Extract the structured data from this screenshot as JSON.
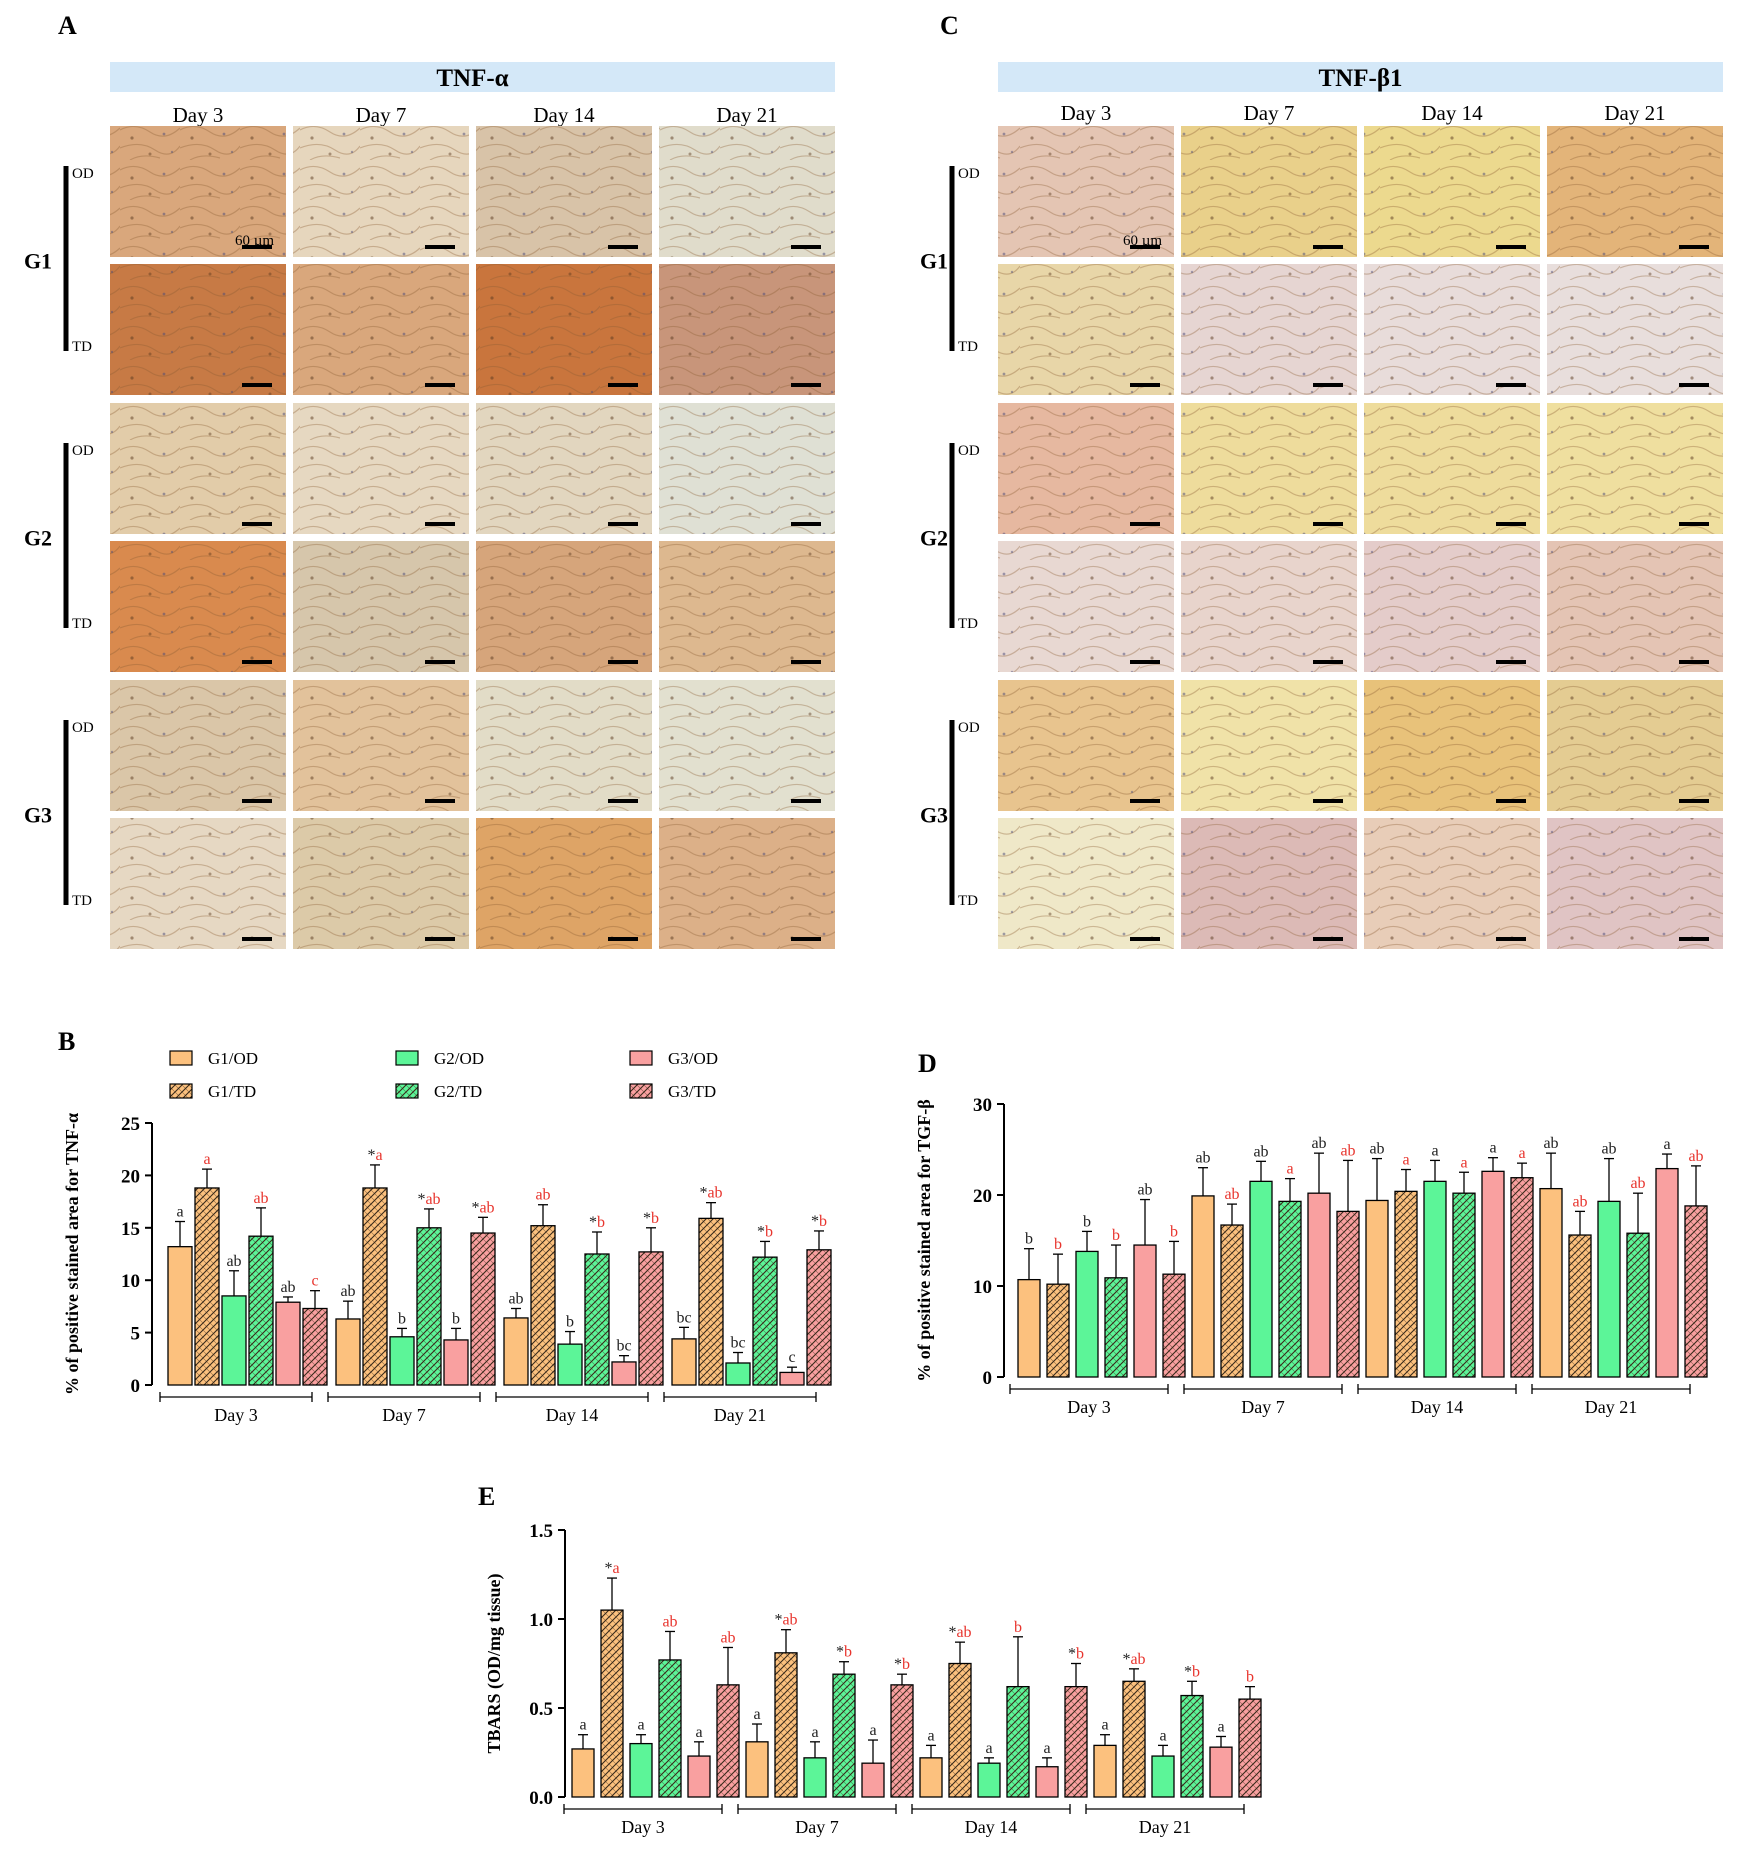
{
  "panel_letters": {
    "a": "A",
    "b": "B",
    "c": "C",
    "d": "D",
    "e": "E"
  },
  "panelA": {
    "title": "TNF-α",
    "days": [
      "Day 3",
      "Day 7",
      "Day 14",
      "Day 21"
    ],
    "groups": [
      "G1",
      "G2",
      "G3"
    ],
    "rows": [
      "OD",
      "TD"
    ],
    "scale_label": "60 µm"
  },
  "panelC": {
    "title": "TNF-β1",
    "days": [
      "Day 3",
      "Day 7",
      "Day 14",
      "Day 21"
    ],
    "groups": [
      "G1",
      "G2",
      "G3"
    ],
    "rows": [
      "OD",
      "TD"
    ],
    "scale_label": "60 µm"
  },
  "legend": [
    {
      "name": "G1/OD",
      "color": "#FCC17E",
      "hatched": false
    },
    {
      "name": "G1/TD",
      "color": "#FCC17E",
      "hatched": true
    },
    {
      "name": "G2/OD",
      "color": "#5CF598",
      "hatched": false
    },
    {
      "name": "G2/TD",
      "color": "#5CF598",
      "hatched": true
    },
    {
      "name": "G3/OD",
      "color": "#F9A0A0",
      "hatched": false
    },
    {
      "name": "G3/TD",
      "color": "#F9A0A0",
      "hatched": true
    }
  ],
  "micrograph_tints": {
    "panelA": [
      [
        "#d9a77c",
        "#e6d6bd",
        "#d8c3a8",
        "#e0dccb"
      ],
      [
        "#c77a45",
        "#d9a77c",
        "#c9753d",
        "#c8957a"
      ],
      [
        "#e2cca9",
        "#e6d8c1",
        "#e2d6bf",
        "#dfe0d4"
      ],
      [
        "#d98a4e",
        "#d6c6ab",
        "#d6a57b",
        "#ddb88f"
      ],
      [
        "#dac6a8",
        "#e2c29b",
        "#e2dcc7",
        "#e2e0cf"
      ],
      [
        "#e6d8c3",
        "#dccaa8",
        "#dea466",
        "#dcb088"
      ]
    ],
    "panelC": [
      [
        "#e4c5b3",
        "#e9d08a",
        "#ecd98e",
        "#e3b479"
      ],
      [
        "#e8d6a8",
        "#e6d5d2",
        "#e8dcda",
        "#e8dedc"
      ],
      [
        "#e6b8a0",
        "#eedc9c",
        "#eedc9c",
        "#efdf9f"
      ],
      [
        "#e8d8d2",
        "#e8d4cc",
        "#e4ccca",
        "#e4c4b4"
      ],
      [
        "#e8c48e",
        "#f0e2a8",
        "#e8c27a",
        "#e4cc92"
      ],
      [
        "#efe8c8",
        "#dcbab6",
        "#e8cdb8",
        "#e0c4c4"
      ]
    ]
  },
  "chart_data": [
    {
      "id": "B",
      "type": "bar",
      "ylabel": "% of positive stained area for TNF-α",
      "ylim": [
        0,
        25
      ],
      "yticks": [
        "0",
        "5",
        "10",
        "15",
        "20",
        "25"
      ],
      "categories": [
        "Day 3",
        "Day 7",
        "Day 14",
        "Day 21"
      ],
      "series": [
        {
          "name": "G1/OD",
          "values": [
            13.2,
            6.3,
            6.4,
            4.4
          ],
          "errors": [
            2.4,
            1.7,
            0.9,
            1.1
          ],
          "labels": [
            "a",
            "ab",
            "ab",
            "bc"
          ]
        },
        {
          "name": "G1/TD",
          "values": [
            18.8,
            18.8,
            15.2,
            15.9
          ],
          "errors": [
            1.8,
            2.2,
            2.0,
            1.5
          ],
          "labels": [
            "a",
            "*a",
            "ab",
            "*ab"
          ]
        },
        {
          "name": "G2/OD",
          "values": [
            8.5,
            4.6,
            3.9,
            2.1
          ],
          "errors": [
            2.4,
            0.8,
            1.2,
            1.0
          ],
          "labels": [
            "ab",
            "b",
            "b",
            "bc"
          ]
        },
        {
          "name": "G2/TD",
          "values": [
            14.2,
            15.0,
            12.5,
            12.2
          ],
          "errors": [
            2.7,
            1.8,
            2.1,
            1.5
          ],
          "labels": [
            "ab",
            "*ab",
            "*b",
            "*b"
          ]
        },
        {
          "name": "G3/OD",
          "values": [
            7.9,
            4.3,
            2.2,
            1.2
          ],
          "errors": [
            0.5,
            1.1,
            0.6,
            0.5
          ],
          "labels": [
            "ab",
            "b",
            "bc",
            "c"
          ]
        },
        {
          "name": "G3/TD",
          "values": [
            7.3,
            14.5,
            12.7,
            12.9
          ],
          "errors": [
            1.7,
            1.5,
            2.3,
            1.8
          ],
          "labels": [
            "c",
            "*ab",
            "*b",
            "*b"
          ]
        }
      ]
    },
    {
      "id": "D",
      "type": "bar",
      "ylabel": "% of positive stained area for TGF-β",
      "ylim": [
        0,
        30
      ],
      "yticks": [
        "0",
        "10",
        "20",
        "30"
      ],
      "categories": [
        "Day 3",
        "Day 7",
        "Day 14",
        "Day 21"
      ],
      "series": [
        {
          "name": "G1/OD",
          "values": [
            10.7,
            19.9,
            19.4,
            20.7
          ],
          "errors": [
            3.4,
            3.1,
            4.6,
            3.9
          ],
          "labels": [
            "b",
            "ab",
            "ab",
            "ab"
          ]
        },
        {
          "name": "G1/TD",
          "values": [
            10.2,
            16.7,
            20.4,
            15.6
          ],
          "errors": [
            3.3,
            2.3,
            2.4,
            2.6
          ],
          "labels": [
            "b",
            "ab",
            "a",
            "ab"
          ]
        },
        {
          "name": "G2/OD",
          "values": [
            13.8,
            21.5,
            21.5,
            19.3
          ],
          "errors": [
            2.2,
            2.2,
            2.3,
            4.7
          ],
          "labels": [
            "b",
            "ab",
            "a",
            "ab"
          ]
        },
        {
          "name": "G2/TD",
          "values": [
            10.9,
            19.3,
            20.2,
            15.8
          ],
          "errors": [
            3.6,
            2.5,
            2.3,
            4.4
          ],
          "labels": [
            "b",
            "a",
            "a",
            "ab"
          ]
        },
        {
          "name": "G3/OD",
          "values": [
            14.5,
            20.2,
            22.6,
            22.9
          ],
          "errors": [
            5.0,
            4.4,
            1.5,
            1.6
          ],
          "labels": [
            "ab",
            "ab",
            "a",
            "a"
          ]
        },
        {
          "name": "G3/TD",
          "values": [
            11.3,
            18.2,
            21.9,
            18.8
          ],
          "errors": [
            3.6,
            5.6,
            1.6,
            4.4
          ],
          "labels": [
            "b",
            "ab",
            "a",
            "ab"
          ]
        }
      ]
    },
    {
      "id": "E",
      "type": "bar",
      "ylabel": "TBARS (OD/mg tissue)",
      "ylim": [
        0,
        1.5
      ],
      "yticks": [
        "0.0",
        "0.5",
        "1.0",
        "1.5"
      ],
      "categories": [
        "Day 3",
        "Day 7",
        "Day 14",
        "Day 21"
      ],
      "series": [
        {
          "name": "G1/OD",
          "values": [
            0.27,
            0.31,
            0.22,
            0.29
          ],
          "errors": [
            0.08,
            0.1,
            0.07,
            0.06
          ],
          "labels": [
            "a",
            "a",
            "a",
            "a"
          ]
        },
        {
          "name": "G1/TD",
          "values": [
            1.05,
            0.81,
            0.75,
            0.65
          ],
          "errors": [
            0.18,
            0.13,
            0.12,
            0.07
          ],
          "labels": [
            "*a",
            "*ab",
            "*ab",
            "*ab"
          ]
        },
        {
          "name": "G2/OD",
          "values": [
            0.3,
            0.22,
            0.19,
            0.23
          ],
          "errors": [
            0.05,
            0.09,
            0.03,
            0.06
          ],
          "labels": [
            "a",
            "a",
            "a",
            "a"
          ]
        },
        {
          "name": "G2/TD",
          "values": [
            0.77,
            0.69,
            0.62,
            0.57
          ],
          "errors": [
            0.16,
            0.07,
            0.28,
            0.08
          ],
          "labels": [
            "ab",
            "*b",
            "b",
            "*b"
          ]
        },
        {
          "name": "G3/OD",
          "values": [
            0.23,
            0.19,
            0.17,
            0.28
          ],
          "errors": [
            0.08,
            0.13,
            0.05,
            0.06
          ],
          "labels": [
            "a",
            "a",
            "a",
            "a"
          ]
        },
        {
          "name": "G3/TD",
          "values": [
            0.63,
            0.63,
            0.62,
            0.55
          ],
          "errors": [
            0.21,
            0.06,
            0.13,
            0.07
          ],
          "labels": [
            "ab",
            "*b",
            "*b",
            "b"
          ]
        }
      ]
    }
  ]
}
